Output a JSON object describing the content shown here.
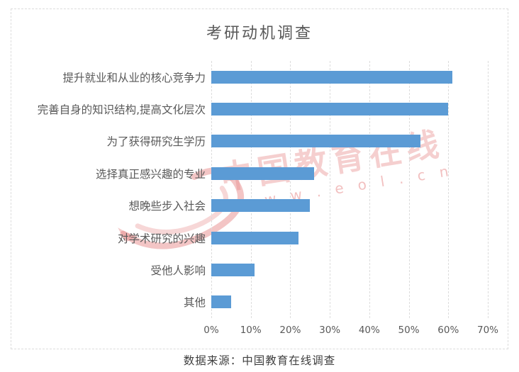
{
  "title": "考研动机调查",
  "source": "数据来源：中国教育在线调查",
  "watermark": {
    "brand": "中国教育在线",
    "url": "w w w . e o l . c n"
  },
  "colors": {
    "bar": "#5b9bd5",
    "grid": "#dcdcdc",
    "axis_text": "#595959",
    "title_text": "#595959",
    "source_text": "#404040",
    "watermark_red": "#e78c8c",
    "frame_border": "#dcdcdc"
  },
  "chart_data": {
    "type": "bar",
    "orientation": "horizontal",
    "title": "考研动机调查",
    "categories": [
      "提升就业和从业的核心竞争力",
      "完善自身的知识结构,提高文化层次",
      "为了获得研究生学历",
      "选择真正感兴趣的专业",
      "想晚些步入社会",
      "对学术研究的兴趣",
      "受他人影响",
      "其他"
    ],
    "values": [
      61,
      60,
      53,
      26,
      25,
      22,
      11,
      5
    ],
    "unit": "%",
    "xlim": [
      0,
      70
    ],
    "x_ticks": [
      "0%",
      "10%",
      "20%",
      "30%",
      "40%",
      "50%",
      "60%",
      "70%"
    ],
    "grid": true,
    "legend": false
  }
}
